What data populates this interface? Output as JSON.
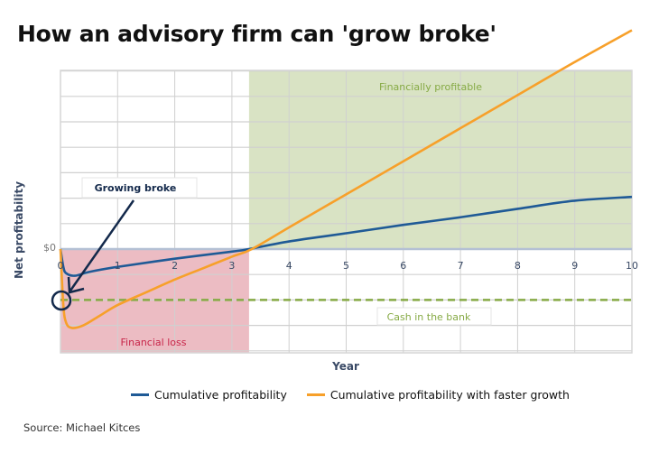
{
  "title": "How an advisory firm can 'grow broke'",
  "source": "Source: Michael Kitces",
  "colors": {
    "blue": "#1f5a96",
    "orange": "#f7a02a",
    "profit_fill": "#d9e3c4",
    "loss_fill": "#ecbcc3",
    "cash_line": "#86aa45",
    "annotation_dark": "#13294b",
    "profit_text": "#86aa45",
    "loss_text": "#c8264a"
  },
  "annotations": {
    "profitable": "Financially profitable",
    "loss": "Financial loss",
    "cash": "Cash in the bank",
    "growing_broke": "Growing broke"
  },
  "chart_data": {
    "type": "line",
    "title": "How an advisory firm can 'grow broke'",
    "xlabel": "Year",
    "ylabel": "Net profitability",
    "x_ticks": [
      "0",
      "1",
      "2",
      "3",
      "4",
      "5",
      "6",
      "7",
      "8",
      "9",
      "10"
    ],
    "y_ticks": [
      "$0"
    ],
    "xlim": [
      0,
      10
    ],
    "ylim": [
      -4.2,
      7
    ],
    "grid": true,
    "legend_position": "bottom",
    "series": [
      {
        "name": "Cumulative profitability",
        "color": "#1f5a96",
        "x": [
          0,
          0.05,
          0.1,
          0.25,
          0.5,
          1,
          2,
          3,
          3.3,
          4,
          5,
          6,
          7,
          8,
          9,
          10
        ],
        "y": [
          0,
          -0.7,
          -0.95,
          -1.05,
          -0.9,
          -0.7,
          -0.38,
          -0.1,
          0,
          0.3,
          0.62,
          0.95,
          1.25,
          1.58,
          1.9,
          2.05
        ]
      },
      {
        "name": "Cumulative profitability with faster growth",
        "color": "#f7a02a",
        "x": [
          0,
          0.05,
          0.1,
          0.2,
          0.4,
          0.7,
          1,
          1.5,
          2,
          2.5,
          3,
          3.35,
          4,
          5,
          6,
          7,
          8,
          9,
          10
        ],
        "y": [
          0,
          -2.2,
          -2.9,
          -3.1,
          -3.0,
          -2.6,
          -2.2,
          -1.7,
          -1.2,
          -0.75,
          -0.3,
          0,
          0.85,
          2.15,
          3.45,
          4.75,
          6.05,
          7.35,
          8.6
        ]
      }
    ],
    "reference_lines": [
      {
        "name": "Cash in the bank",
        "y": -2.0,
        "style": "dashed",
        "color": "#86aa45"
      }
    ],
    "regions": [
      {
        "name": "Financially profitable",
        "x": [
          3.3,
          10
        ],
        "y": [
          0,
          7
        ],
        "color": "#d9e3c4"
      },
      {
        "name": "Financial loss",
        "x": [
          0,
          3.3
        ],
        "y": [
          -4.2,
          0
        ],
        "color": "#ecbcc3"
      }
    ],
    "callouts": [
      {
        "text": "Growing broke",
        "points_to": {
          "x": 0,
          "y": -2.0
        }
      }
    ]
  },
  "legend": {
    "items": [
      {
        "label": "Cumulative profitability",
        "color": "#1f5a96"
      },
      {
        "label": "Cumulative profitability with faster growth",
        "color": "#f7a02a"
      }
    ]
  }
}
